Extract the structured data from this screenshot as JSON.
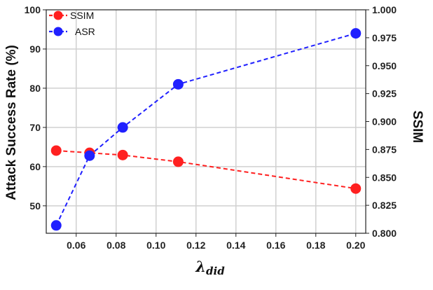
{
  "chart_data": {
    "type": "line",
    "x": [
      0.05,
      0.0667,
      0.0833,
      0.1111,
      0.2
    ],
    "xticks": [
      "0.06",
      "0.08",
      "0.10",
      "0.12",
      "0.14",
      "0.16",
      "0.18",
      "0.20"
    ],
    "xlim": [
      0.045,
      0.205
    ],
    "xlabel": {
      "main": "λ",
      "sub": "did"
    },
    "ylabel_left": "Attack Success Rate (%)",
    "ylabel_right": "SSIM",
    "ylim_left": [
      43,
      100
    ],
    "yticks_left": [
      "50",
      "60",
      "70",
      "80",
      "90",
      "100"
    ],
    "ylim_right": [
      0.8,
      1.0
    ],
    "yticks_right": [
      "0.800",
      "0.825",
      "0.850",
      "0.875",
      "0.900",
      "0.925",
      "0.950",
      "0.975",
      "1.000"
    ],
    "grid": true,
    "legend_position": "top-left",
    "series": [
      {
        "name": "SSIM",
        "axis": "right",
        "color": "#ff2020",
        "values": [
          0.874,
          0.872,
          0.87,
          0.864,
          0.84
        ]
      },
      {
        "name": "ASR",
        "axis": "left",
        "color": "#2020ff",
        "values": [
          45,
          62.8,
          70,
          81,
          94
        ]
      }
    ]
  }
}
